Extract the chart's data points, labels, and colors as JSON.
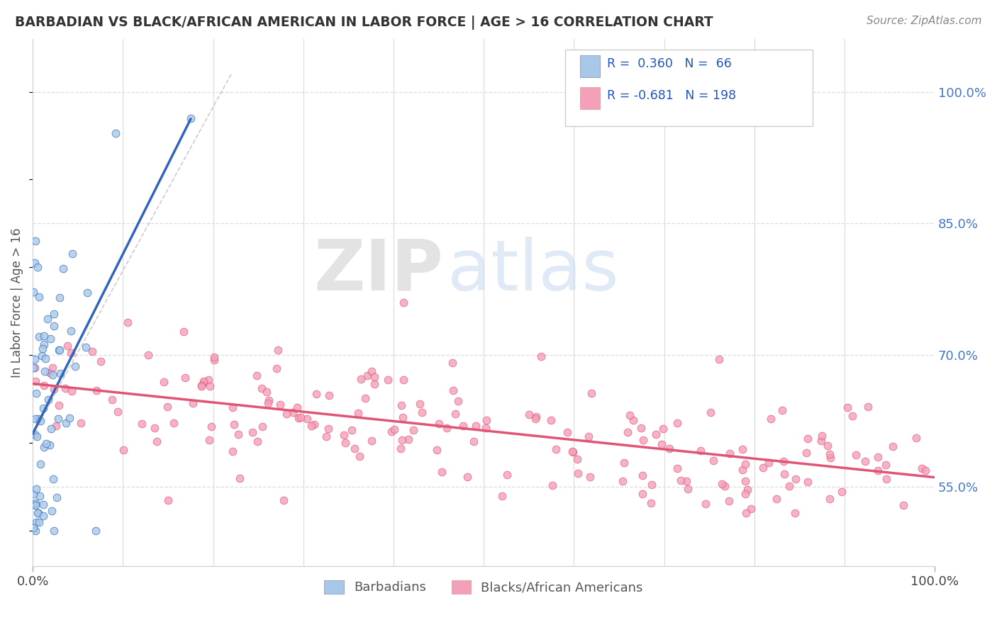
{
  "title": "BARBADIAN VS BLACK/AFRICAN AMERICAN IN LABOR FORCE | AGE > 16 CORRELATION CHART",
  "source": "Source: ZipAtlas.com",
  "ylabel": "In Labor Force | Age > 16",
  "ytick_labels": [
    "55.0%",
    "70.0%",
    "85.0%",
    "100.0%"
  ],
  "ytick_values": [
    0.55,
    0.7,
    0.85,
    1.0
  ],
  "legend_labels_bottom": [
    "Barbadians",
    "Blacks/African Americans"
  ],
  "barbadians_color": "#a8c8e8",
  "blacks_color": "#f4a0b8",
  "trendline_barbadians_color": "#3366bb",
  "trendline_blacks_color": "#e05575",
  "trendline_dashed_color": "#bbbbbb",
  "r_barbadians": 0.36,
  "n_barbadians": 66,
  "r_blacks": -0.681,
  "n_blacks": 198,
  "background_color": "#ffffff",
  "grid_color": "#dddddd",
  "ytick_color": "#4477cc",
  "title_color": "#333333",
  "source_color": "#888888",
  "ylabel_color": "#555555"
}
